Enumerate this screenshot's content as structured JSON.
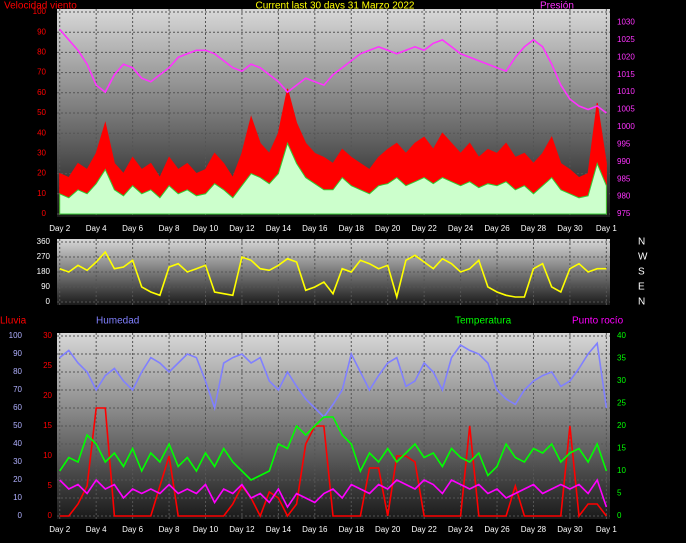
{
  "chart_data": [
    {
      "type": "line",
      "title": "Current last 30 days 31 Marzo 2022",
      "ylabel": "Velocidad viento",
      "x": [
        0,
        0.5,
        1,
        1.5,
        2,
        2.5,
        3,
        3.5,
        4,
        4.5,
        5,
        5.5,
        6,
        6.5,
        7,
        7.5,
        8,
        8.5,
        9,
        9.5,
        10,
        10.5,
        11,
        11.5,
        12,
        12.5,
        13,
        13.5,
        14,
        14.5,
        15,
        15.5,
        16,
        16.5,
        17,
        17.5,
        18,
        18.5,
        19,
        19.5,
        20,
        20.5,
        21,
        21.5,
        22,
        22.5,
        23,
        23.5,
        24,
        24.5,
        25,
        25.5,
        26,
        26.5,
        27,
        27.5,
        28,
        28.5,
        29,
        29.5,
        30
      ],
      "xlim": [
        -0.15,
        30.2
      ],
      "xticks": [
        {
          "value": 0,
          "label": "Day 2"
        },
        {
          "value": 2,
          "label": "Day 4"
        },
        {
          "value": 4,
          "label": "Day 6"
        },
        {
          "value": 6,
          "label": "Day 8"
        },
        {
          "value": 8,
          "label": "Day 10"
        },
        {
          "value": 10,
          "label": "Day 12"
        },
        {
          "value": 12,
          "label": "Day 14"
        },
        {
          "value": 14,
          "label": "Day 16"
        },
        {
          "value": 16,
          "label": "Day 18"
        },
        {
          "value": 18,
          "label": "Day 20"
        },
        {
          "value": 20,
          "label": "Day 22"
        },
        {
          "value": 22,
          "label": "Day 24"
        },
        {
          "value": 24,
          "label": "Day 26"
        },
        {
          "value": 26,
          "label": "Day 28"
        },
        {
          "value": 28,
          "label": "Day 30"
        },
        {
          "value": 30,
          "label": "Day 1"
        }
      ],
      "ylim": [
        0,
        100
      ],
      "yticks": [
        0,
        10,
        20,
        30,
        40,
        50,
        60,
        70,
        80,
        90,
        100
      ],
      "y2lim": [
        975,
        1033
      ],
      "y2ticks": [
        975,
        980,
        985,
        990,
        995,
        1000,
        1005,
        1010,
        1015,
        1020,
        1025,
        1030
      ],
      "grid": true,
      "series": [
        {
          "color": "#ff0000",
          "fill": true,
          "values": [
            20,
            18,
            25,
            22,
            30,
            45,
            25,
            20,
            28,
            22,
            25,
            18,
            28,
            22,
            25,
            20,
            22,
            30,
            25,
            18,
            30,
            48,
            35,
            30,
            40,
            62,
            45,
            35,
            30,
            28,
            25,
            32,
            28,
            25,
            22,
            28,
            32,
            35,
            30,
            35,
            38,
            32,
            40,
            35,
            30,
            35,
            28,
            32,
            30,
            35,
            28,
            30,
            25,
            30,
            38,
            25,
            22,
            18,
            20,
            55,
            25
          ]
        },
        {
          "color": "#ccffcc",
          "edge": "#33cc33",
          "fill": true,
          "values": [
            10,
            8,
            12,
            10,
            15,
            22,
            12,
            9,
            14,
            10,
            12,
            8,
            14,
            10,
            12,
            9,
            10,
            15,
            12,
            8,
            14,
            20,
            18,
            15,
            20,
            35,
            25,
            18,
            15,
            12,
            12,
            18,
            14,
            12,
            10,
            14,
            15,
            18,
            14,
            16,
            18,
            15,
            18,
            16,
            14,
            16,
            13,
            15,
            14,
            16,
            12,
            14,
            10,
            14,
            18,
            12,
            10,
            8,
            9,
            25,
            14
          ]
        },
        {
          "name": "Presión",
          "color": "#ff33ff",
          "axis": "y2",
          "values": [
            1028,
            1025,
            1022,
            1018,
            1012,
            1010,
            1015,
            1018,
            1017,
            1014,
            1013,
            1015,
            1017,
            1020,
            1021,
            1022,
            1022,
            1021,
            1019,
            1017,
            1016,
            1018,
            1017,
            1015,
            1013,
            1010,
            1012,
            1014,
            1013,
            1012,
            1015,
            1017,
            1019,
            1021,
            1022,
            1023,
            1022,
            1021,
            1022,
            1023,
            1022,
            1024,
            1025,
            1023,
            1021,
            1020,
            1019,
            1018,
            1017,
            1016,
            1020,
            1023,
            1025,
            1023,
            1018,
            1012,
            1008,
            1006,
            1005,
            1006,
            1004
          ]
        }
      ]
    },
    {
      "type": "line",
      "x": [
        0,
        0.5,
        1,
        1.5,
        2,
        2.5,
        3,
        3.5,
        4,
        4.5,
        5,
        5.5,
        6,
        6.5,
        7,
        7.5,
        8,
        8.5,
        9,
        9.5,
        10,
        10.5,
        11,
        11.5,
        12,
        12.5,
        13,
        13.5,
        14,
        14.5,
        15,
        15.5,
        16,
        16.5,
        17,
        17.5,
        18,
        18.5,
        19,
        19.5,
        20,
        20.5,
        21,
        21.5,
        22,
        22.5,
        23,
        23.5,
        24,
        24.5,
        25,
        25.5,
        26,
        26.5,
        27,
        27.5,
        28,
        28.5,
        29,
        29.5,
        30
      ],
      "xlim": [
        -0.15,
        30.2
      ],
      "xticks": [
        0,
        2,
        4,
        6,
        8,
        10,
        12,
        14,
        16,
        18,
        20,
        22,
        24,
        26,
        28,
        30
      ],
      "ylim": [
        0,
        360
      ],
      "yticks": [
        0,
        90,
        180,
        270,
        360
      ],
      "grid": true,
      "direction_labels": [
        "N",
        "W",
        "S",
        "E",
        "N"
      ],
      "series": [
        {
          "color": "#ffff00",
          "values": [
            200,
            180,
            220,
            190,
            240,
            300,
            200,
            210,
            250,
            90,
            60,
            40,
            210,
            230,
            180,
            200,
            220,
            60,
            50,
            40,
            270,
            250,
            200,
            190,
            220,
            260,
            240,
            70,
            90,
            120,
            50,
            200,
            180,
            250,
            230,
            200,
            220,
            30,
            250,
            280,
            240,
            200,
            260,
            230,
            180,
            200,
            250,
            90,
            60,
            40,
            30,
            30,
            200,
            230,
            90,
            60,
            200,
            230,
            180,
            200,
            200
          ]
        }
      ]
    },
    {
      "type": "line",
      "x": [
        0,
        0.5,
        1,
        1.5,
        2,
        2.5,
        3,
        3.5,
        4,
        4.5,
        5,
        5.5,
        6,
        6.5,
        7,
        7.5,
        8,
        8.5,
        9,
        9.5,
        10,
        10.5,
        11,
        11.5,
        12,
        12.5,
        13,
        13.5,
        14,
        14.5,
        15,
        15.5,
        16,
        16.5,
        17,
        17.5,
        18,
        18.5,
        19,
        19.5,
        20,
        20.5,
        21,
        21.5,
        22,
        22.5,
        23,
        23.5,
        24,
        24.5,
        25,
        25.5,
        26,
        26.5,
        27,
        27.5,
        28,
        28.5,
        29,
        29.5,
        30
      ],
      "xlim": [
        -0.15,
        30.2
      ],
      "xticks": [
        {
          "value": 0,
          "label": "Day 2"
        },
        {
          "value": 2,
          "label": "Day 4"
        },
        {
          "value": 4,
          "label": "Day 6"
        },
        {
          "value": 6,
          "label": "Day 8"
        },
        {
          "value": 8,
          "label": "Day 10"
        },
        {
          "value": 10,
          "label": "Day 12"
        },
        {
          "value": 12,
          "label": "Day 14"
        },
        {
          "value": 14,
          "label": "Day 16"
        },
        {
          "value": 16,
          "label": "Day 18"
        },
        {
          "value": 18,
          "label": "Day 20"
        },
        {
          "value": 20,
          "label": "Day 22"
        },
        {
          "value": 22,
          "label": "Day 24"
        },
        {
          "value": 24,
          "label": "Day 26"
        },
        {
          "value": 26,
          "label": "Day 28"
        },
        {
          "value": 28,
          "label": "Day 30"
        },
        {
          "value": 30,
          "label": "Day 1"
        }
      ],
      "ylim": [
        0,
        100
      ],
      "yticks": [
        0,
        10,
        20,
        30,
        40,
        50,
        60,
        70,
        80,
        90,
        100
      ],
      "y2lim": [
        0,
        40
      ],
      "y2ticks": [
        0,
        5,
        10,
        15,
        20,
        25,
        30,
        35,
        40
      ],
      "y3lim": [
        0,
        30
      ],
      "y3ticks": [
        0,
        5,
        10,
        15,
        20,
        25,
        30
      ],
      "grid": true,
      "series": [
        {
          "name": "Lluvia",
          "color": "#ff0000",
          "axis": "y3",
          "values": [
            0,
            0,
            2,
            5,
            18,
            18,
            0,
            0,
            0,
            0,
            0,
            5,
            10,
            0,
            0,
            0,
            0,
            0,
            0,
            2,
            5,
            3,
            0,
            4,
            3,
            0,
            2,
            12,
            15,
            15,
            0,
            0,
            0,
            0,
            8,
            8,
            0,
            10,
            10,
            9,
            0,
            0,
            0,
            0,
            0,
            15,
            0,
            0,
            0,
            0,
            5,
            0,
            0,
            0,
            0,
            0,
            15,
            0,
            2,
            2,
            0
          ]
        },
        {
          "name": "Humedad",
          "color": "#8080ff",
          "values": [
            88,
            92,
            85,
            80,
            70,
            78,
            82,
            75,
            70,
            80,
            88,
            85,
            80,
            85,
            90,
            88,
            75,
            60,
            85,
            88,
            90,
            85,
            88,
            75,
            70,
            80,
            72,
            65,
            60,
            55,
            62,
            70,
            90,
            80,
            70,
            78,
            85,
            88,
            72,
            75,
            85,
            80,
            70,
            88,
            95,
            92,
            90,
            85,
            70,
            65,
            62,
            70,
            75,
            78,
            80,
            72,
            75,
            82,
            90,
            96,
            60
          ]
        },
        {
          "name": "Temperatura",
          "color": "#00ff00",
          "axis": "y2",
          "values": [
            10,
            13,
            12,
            18,
            16,
            12,
            14,
            11,
            15,
            10,
            14,
            12,
            16,
            11,
            13,
            10,
            14,
            11,
            15,
            12,
            10,
            8,
            9,
            10,
            16,
            15,
            20,
            18,
            20,
            22,
            22,
            18,
            16,
            10,
            14,
            12,
            15,
            12,
            14,
            16,
            13,
            14,
            11,
            15,
            13,
            12,
            14,
            9,
            11,
            16,
            13,
            12,
            15,
            14,
            16,
            12,
            14,
            15,
            12,
            16,
            10
          ]
        },
        {
          "name": "Punto rocío",
          "color": "#ff00ff",
          "axis": "y2",
          "values": [
            8,
            6,
            7,
            5,
            8,
            6,
            7,
            4,
            6,
            5,
            6,
            5,
            7,
            5,
            6,
            5,
            7,
            3,
            6,
            5,
            7,
            4,
            5,
            3,
            6,
            2,
            5,
            4,
            3,
            5,
            6,
            4,
            7,
            6,
            5,
            7,
            6,
            8,
            7,
            6,
            8,
            7,
            5,
            8,
            7,
            6,
            7,
            5,
            6,
            4,
            5,
            6,
            7,
            5,
            6,
            7,
            6,
            7,
            5,
            8,
            2
          ]
        }
      ]
    }
  ]
}
